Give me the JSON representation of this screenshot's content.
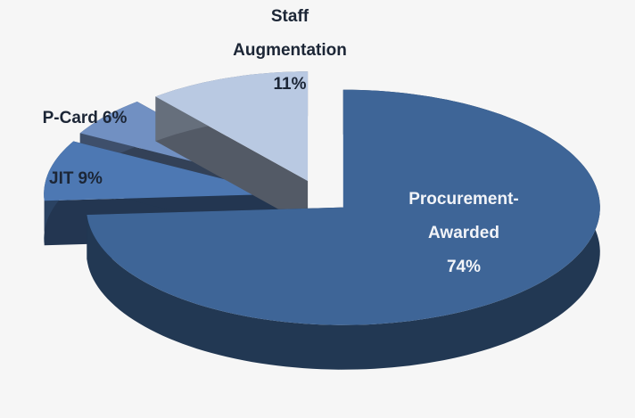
{
  "chart_data": {
    "type": "pie",
    "categories": [
      "Procurement-Awarded",
      "JIT",
      "P-Card",
      "Staff Augmentation"
    ],
    "values": [
      74,
      9,
      6,
      11
    ],
    "value_labels": [
      "74%",
      "9%",
      "6%",
      "11%"
    ],
    "colors": [
      "#3e6597",
      "#4d78b3",
      "#7190c2",
      "#b9c9e2"
    ]
  }
}
